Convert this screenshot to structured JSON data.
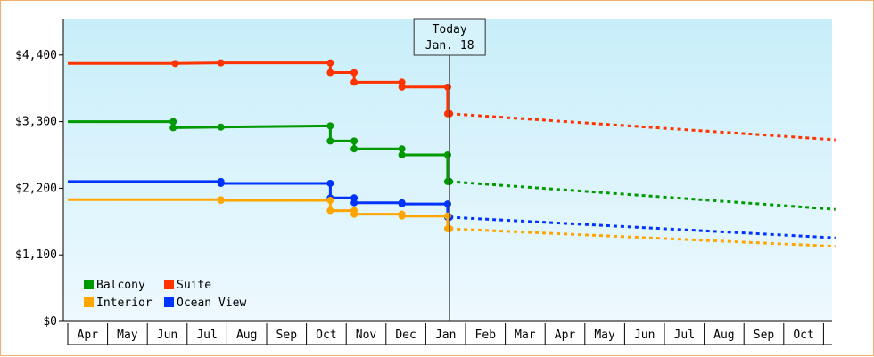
{
  "chart_data": {
    "type": "line",
    "title": "",
    "xlabel": "",
    "ylabel": "",
    "ylim": [
      0,
      5000
    ],
    "yticks": [
      {
        "value": 0,
        "label": "$0"
      },
      {
        "value": 1100,
        "label": "$1,100"
      },
      {
        "value": 2200,
        "label": "$2,200"
      },
      {
        "value": 3300,
        "label": "$3,300"
      },
      {
        "value": 4400,
        "label": "$4,400"
      }
    ],
    "months": [
      "Apr",
      "May",
      "Jun",
      "Jul",
      "Aug",
      "Sep",
      "Oct",
      "Nov",
      "Dec",
      "Jan",
      "Feb",
      "Mar",
      "Apr",
      "May",
      "Jun",
      "Jul",
      "Aug",
      "Sep",
      "Oct"
    ],
    "x_range_months": [
      0,
      19.3
    ],
    "today": {
      "line1": "Today",
      "line2": "Jan. 18",
      "x": 9.6
    },
    "legend_position": "bottom-left",
    "background_gradient": [
      "#c8eefa",
      "#eef9fe"
    ],
    "series": [
      {
        "name": "Suite",
        "color": "#ff3300",
        "points": [
          [
            0.0,
            4260
          ],
          [
            2.7,
            4260
          ],
          [
            3.85,
            4270
          ],
          [
            6.6,
            4270
          ],
          [
            6.6,
            4110
          ],
          [
            7.2,
            4110
          ],
          [
            7.2,
            3950
          ],
          [
            8.4,
            3950
          ],
          [
            8.4,
            3870
          ],
          [
            9.55,
            3870
          ],
          [
            9.55,
            3430
          ],
          [
            9.6,
            3430
          ]
        ],
        "forecast": [
          [
            9.6,
            3430
          ],
          [
            19.3,
            3000
          ]
        ]
      },
      {
        "name": "Balcony",
        "color": "#009900",
        "points": [
          [
            0.0,
            3300
          ],
          [
            2.65,
            3300
          ],
          [
            2.65,
            3200
          ],
          [
            3.85,
            3210
          ],
          [
            6.6,
            3230
          ],
          [
            6.6,
            2980
          ],
          [
            7.2,
            2980
          ],
          [
            7.2,
            2850
          ],
          [
            8.4,
            2850
          ],
          [
            8.4,
            2750
          ],
          [
            9.55,
            2750
          ],
          [
            9.55,
            2310
          ],
          [
            9.6,
            2310
          ]
        ],
        "forecast": [
          [
            9.6,
            2310
          ],
          [
            19.3,
            1850
          ]
        ]
      },
      {
        "name": "Ocean View",
        "color": "#0033ff",
        "points": [
          [
            0.0,
            2310
          ],
          [
            3.85,
            2310
          ],
          [
            3.85,
            2280
          ],
          [
            6.6,
            2280
          ],
          [
            6.6,
            2040
          ],
          [
            7.2,
            2040
          ],
          [
            7.2,
            1960
          ],
          [
            8.4,
            1960
          ],
          [
            8.4,
            1940
          ],
          [
            9.55,
            1940
          ],
          [
            9.55,
            1720
          ],
          [
            9.6,
            1720
          ]
        ],
        "forecast": [
          [
            9.6,
            1720
          ],
          [
            19.3,
            1380
          ]
        ]
      },
      {
        "name": "Interior",
        "color": "#ffa500",
        "points": [
          [
            0.0,
            2010
          ],
          [
            3.85,
            2010
          ],
          [
            3.85,
            2000
          ],
          [
            6.6,
            2000
          ],
          [
            6.6,
            1830
          ],
          [
            7.2,
            1830
          ],
          [
            7.2,
            1770
          ],
          [
            8.4,
            1770
          ],
          [
            8.4,
            1740
          ],
          [
            9.55,
            1740
          ],
          [
            9.55,
            1530
          ],
          [
            9.6,
            1530
          ]
        ],
        "forecast": [
          [
            9.6,
            1530
          ],
          [
            19.3,
            1240
          ]
        ]
      }
    ],
    "legend": [
      {
        "name": "Balcony",
        "color": "#009900"
      },
      {
        "name": "Suite",
        "color": "#ff3300"
      },
      {
        "name": "Interior",
        "color": "#ffa500"
      },
      {
        "name": "Ocean View",
        "color": "#0033ff"
      }
    ]
  }
}
